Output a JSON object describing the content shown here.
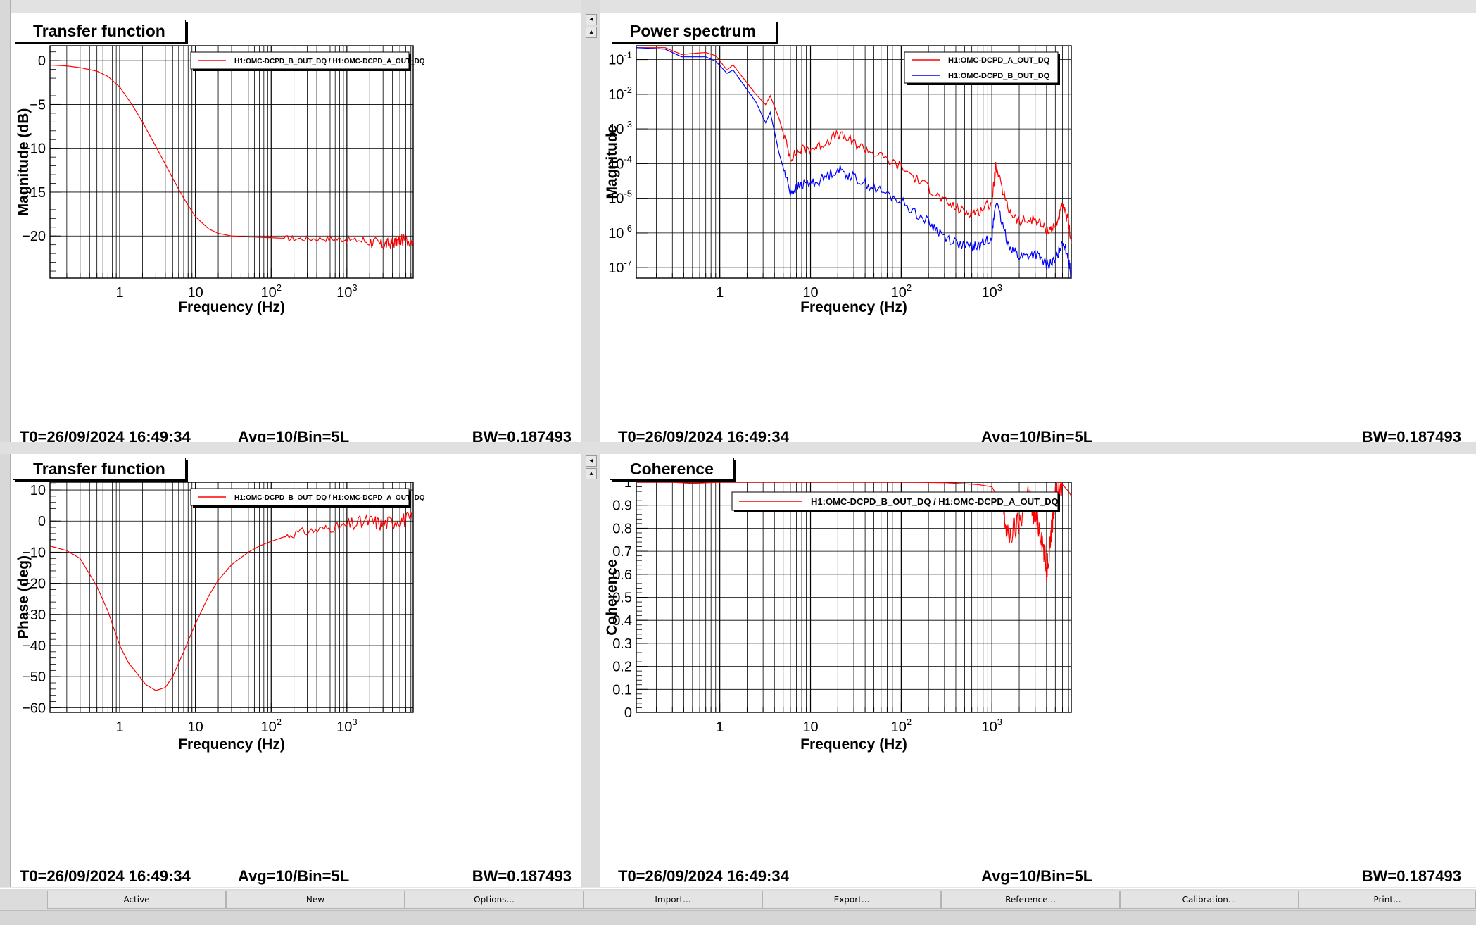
{
  "colors": {
    "red": "#ff0000",
    "blue": "#0000ff",
    "grid": "#000000"
  },
  "panels": [
    {
      "title": "Transfer function",
      "status": {
        "t0": "T0=26/09/2024 16:49:34",
        "avg": "Avg=10/Bin=5L",
        "bw": "BW=0.187493"
      }
    },
    {
      "title": "Power spectrum",
      "status": {
        "t0": "T0=26/09/2024 16:49:34",
        "avg": "Avg=10/Bin=5L",
        "bw": "BW=0.187493"
      }
    },
    {
      "title": "Transfer function",
      "status": {
        "t0": "T0=26/09/2024 16:49:34",
        "avg": "Avg=10/Bin=5L",
        "bw": "BW=0.187493"
      }
    },
    {
      "title": "Coherence",
      "status": {
        "t0": "T0=26/09/2024 16:49:34",
        "avg": "Avg=10/Bin=5L",
        "bw": "BW=0.187493"
      }
    }
  ],
  "toolbar": {
    "buttons": [
      "Active",
      "New",
      "Options...",
      "Import...",
      "Export...",
      "Reference...",
      "Calibration...",
      "Print..."
    ]
  },
  "chart_data": [
    {
      "type": "line",
      "xlabel": "Frequency (Hz)",
      "ylabel": "Magnitude (dB)",
      "xscale": "log",
      "xlim": [
        0.12,
        7500
      ],
      "ylim": [
        -24.8,
        1.7
      ],
      "xticks": [
        "1",
        "10",
        "10^2",
        "10^3"
      ],
      "yticks": [
        "0",
        "−5",
        "−10",
        "−15",
        "−20"
      ],
      "legend": {
        "placement": "top-right"
      },
      "series": [
        {
          "name": "H1:OMC-DCPD_B_OUT_DQ / H1:OMC-DCPD_A_OUT_DQ",
          "color": "#ff0000",
          "x": [
            0.12,
            0.2,
            0.3,
            0.5,
            0.7,
            1,
            1.5,
            2,
            3,
            4,
            5,
            7,
            10,
            15,
            20,
            30,
            50,
            100,
            200,
            500,
            1000,
            2000,
            3000,
            4000,
            5000,
            7500
          ],
          "y": [
            -0.5,
            -0.6,
            -0.8,
            -1.2,
            -1.8,
            -3.0,
            -5.2,
            -7.0,
            -9.8,
            -11.8,
            -13.4,
            -15.7,
            -17.8,
            -19.2,
            -19.7,
            -20.0,
            -20.1,
            -20.2,
            -20.3,
            -20.3,
            -20.4,
            -20.6,
            -21.0,
            -20.8,
            -20.5,
            -20.5
          ]
        }
      ]
    },
    {
      "type": "line",
      "xlabel": "Frequency (Hz)",
      "ylabel": "Magnitude",
      "xscale": "log",
      "yscale": "log",
      "xlim": [
        0.12,
        7500
      ],
      "ylim": [
        5e-08,
        0.25
      ],
      "xticks": [
        "1",
        "10",
        "10^2",
        "10^3"
      ],
      "yticks": [
        "10^-1",
        "10^-2",
        "10^-3",
        "10^-4",
        "10^-5",
        "10^-6",
        "10^-7"
      ],
      "legend": {
        "placement": "top-right"
      },
      "series": [
        {
          "name": "H1:OMC-DCPD_A_OUT_DQ",
          "color": "#ff0000",
          "x": [
            0.12,
            0.25,
            0.38,
            0.5,
            0.7,
            0.9,
            1.2,
            1.4,
            1.8,
            2.5,
            3.2,
            3.6,
            4.5,
            6,
            8,
            12,
            20,
            30,
            50,
            100,
            200,
            300,
            500,
            700,
            1000,
            1100,
            1500,
            2000,
            3000,
            4000,
            5000,
            6000,
            7000,
            7500
          ],
          "y": [
            0.22,
            0.22,
            0.14,
            0.15,
            0.16,
            0.13,
            0.05,
            0.07,
            0.03,
            0.01,
            0.005,
            0.009,
            0.002,
            0.00015,
            0.00025,
            0.0003,
            0.0007,
            0.0004,
            0.0002,
            8e-05,
            2e-05,
            8e-06,
            4e-06,
            4e-06,
            8e-06,
            8e-05,
            5e-06,
            2e-06,
            2.5e-06,
            1.2e-06,
            1.5e-06,
            6e-06,
            2e-06,
            5e-07
          ]
        },
        {
          "name": "H1:OMC-DCPD_B_OUT_DQ",
          "color": "#0000ff",
          "x": [
            0.12,
            0.25,
            0.38,
            0.5,
            0.7,
            0.9,
            1.2,
            1.4,
            1.8,
            2.5,
            3.2,
            3.6,
            4.5,
            6,
            8,
            12,
            20,
            30,
            50,
            100,
            200,
            300,
            500,
            700,
            1000,
            1100,
            1500,
            2000,
            3000,
            4000,
            5000,
            6000,
            7000,
            7500
          ],
          "y": [
            0.22,
            0.2,
            0.12,
            0.12,
            0.12,
            0.09,
            0.04,
            0.05,
            0.02,
            0.006,
            0.0015,
            0.003,
            0.0002,
            1.5e-05,
            2.5e-05,
            3e-05,
            7e-05,
            4e-05,
            2e-05,
            8e-06,
            2e-06,
            8e-07,
            4e-07,
            4e-07,
            8e-07,
            8e-06,
            5e-07,
            2e-07,
            2.5e-07,
            1.2e-07,
            1.5e-07,
            6e-07,
            2e-07,
            5e-08
          ]
        }
      ]
    },
    {
      "type": "line",
      "xlabel": "Frequency (Hz)",
      "ylabel": "Phase (deg)",
      "xscale": "log",
      "xlim": [
        0.12,
        7500
      ],
      "ylim": [
        -61.5,
        12.5
      ],
      "xticks": [
        "1",
        "10",
        "10^2",
        "10^3"
      ],
      "yticks": [
        "10",
        "0",
        "−10",
        "−20",
        "−30",
        "−40",
        "−50",
        "−60"
      ],
      "legend": {
        "placement": "top-right"
      },
      "series": [
        {
          "name": "H1:OMC-DCPD_B_OUT_DQ / H1:OMC-DCPD_A_OUT_DQ",
          "color": "#ff0000",
          "x": [
            0.12,
            0.2,
            0.3,
            0.5,
            0.7,
            1,
            1.3,
            1.7,
            2.2,
            3,
            4,
            5,
            7,
            10,
            15,
            20,
            30,
            50,
            70,
            100,
            200,
            500,
            1000,
            2000,
            3000,
            5000,
            7500
          ],
          "y": [
            -8,
            -9.5,
            -12,
            -21,
            -29,
            -40,
            -45.5,
            -49,
            -52.5,
            -54.5,
            -53.5,
            -50,
            -42,
            -33,
            -24,
            -19,
            -14,
            -10,
            -8,
            -6.5,
            -4,
            -2.5,
            -1.5,
            0,
            -1,
            0.5,
            0.5
          ]
        }
      ]
    },
    {
      "type": "line",
      "xlabel": "Frequency (Hz)",
      "ylabel": "Coherence",
      "xscale": "log",
      "xlim": [
        0.12,
        7500
      ],
      "ylim": [
        0,
        1
      ],
      "xticks": [
        "1",
        "10",
        "10^2",
        "10^3"
      ],
      "yticks": [
        "1",
        "0.9",
        "0.8",
        "0.7",
        "0.6",
        "0.5",
        "0.4",
        "0.3",
        "0.2",
        "0.1",
        "0"
      ],
      "legend": {
        "placement": "top-right"
      },
      "series": [
        {
          "name": "H1:OMC-DCPD_B_OUT_DQ / H1:OMC-DCPD_A_OUT_DQ",
          "color": "#ff0000",
          "x": [
            0.12,
            0.3,
            0.5,
            1,
            10,
            100,
            300,
            700,
            1000,
            1300,
            1500,
            2000,
            2500,
            3000,
            3500,
            4000,
            4500,
            5000,
            6000,
            7000,
            7500
          ],
          "y": [
            1,
            1,
            0.995,
            1,
            1,
            1,
            0.998,
            0.99,
            0.98,
            0.9,
            0.76,
            0.82,
            0.95,
            0.85,
            0.78,
            0.62,
            0.78,
            0.95,
            0.99,
            0.96,
            0.94
          ]
        }
      ]
    }
  ]
}
